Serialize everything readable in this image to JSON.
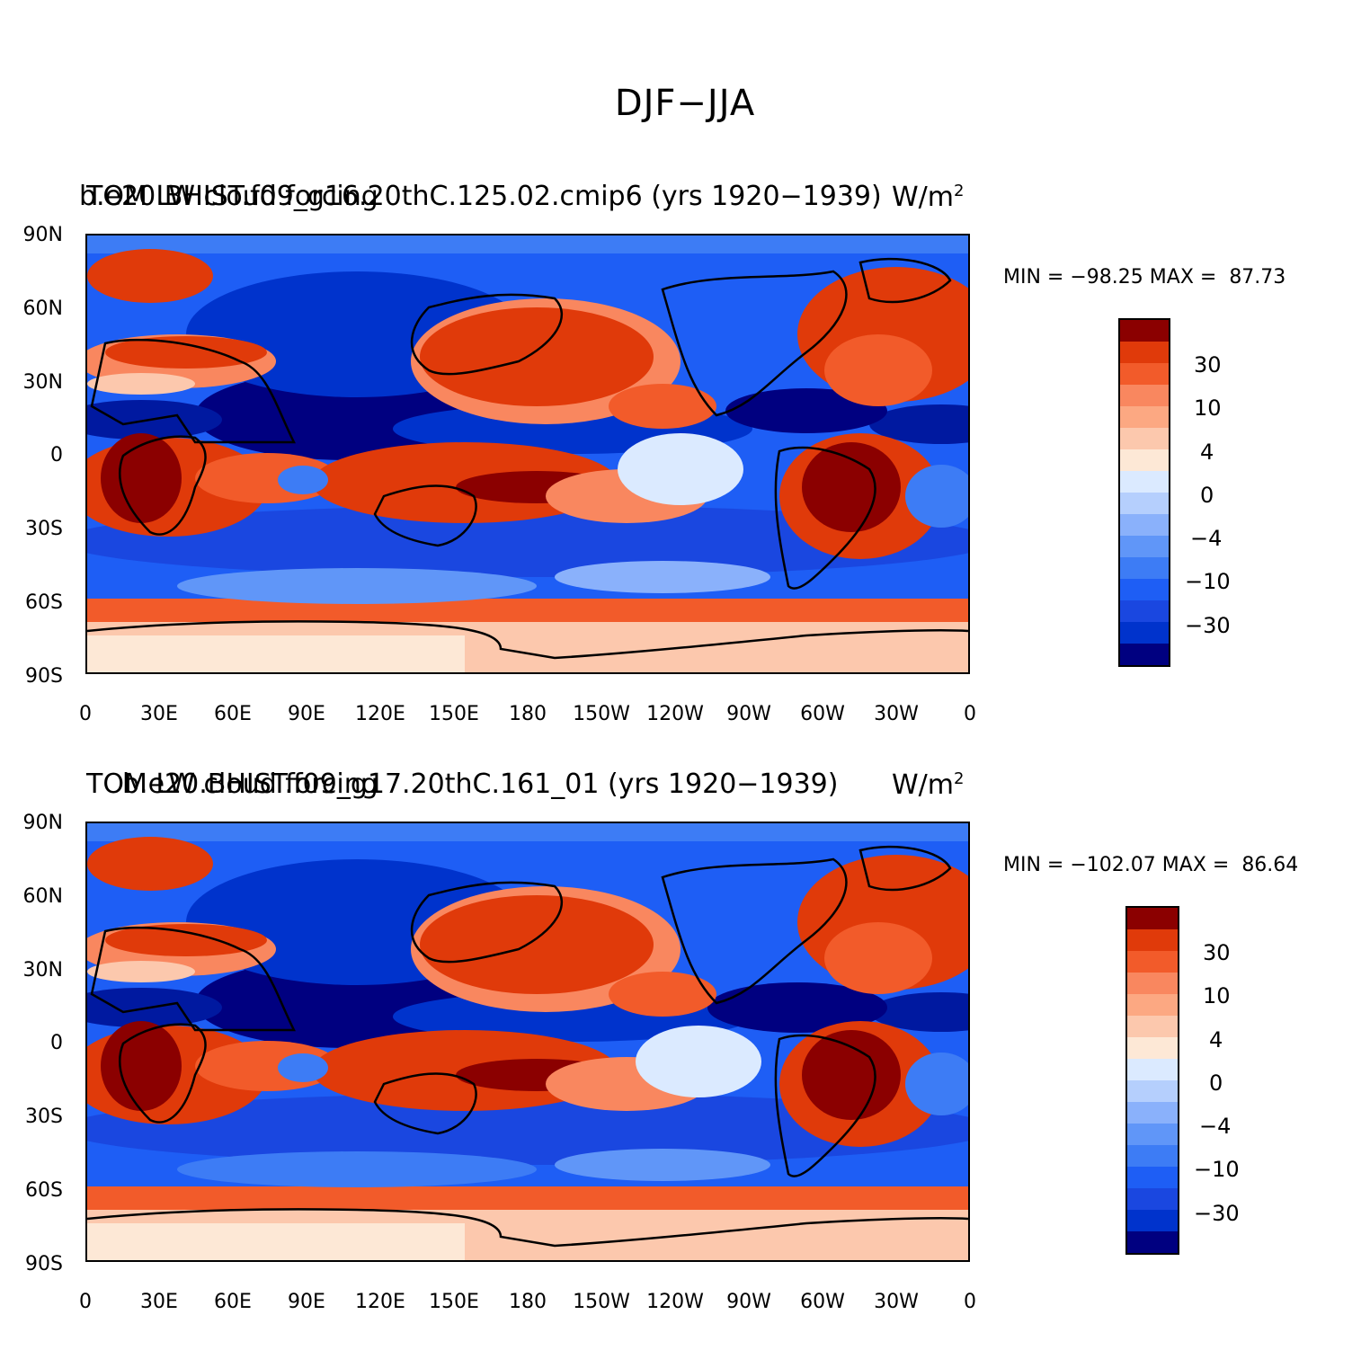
{
  "figure": {
    "title": "DJF−JJA",
    "colors": {
      "levels": [
        "#000080",
        "#0019a0",
        "#0033cc",
        "#1a47e0",
        "#1e5ef5",
        "#3d7cf5",
        "#6096f8",
        "#8ab1fb",
        "#b5cffd",
        "#dbeaff",
        "#fde8d6",
        "#fcc8ad",
        "#fca882",
        "#f9875f",
        "#f25b2a",
        "#e03a0a",
        "#c02808",
        "#8b0000"
      ]
    }
  },
  "panels": [
    {
      "case": "b.e20.BHIST.f09_g16.20thC.125.02.cmip6 (yrs 1920−1939)",
      "variable": "TOM LW cloud forcing",
      "units": "W/m",
      "units_exp": "2",
      "min_label": "MIN =",
      "min": "−98.25",
      "max_label": "MAX =",
      "max": "87.73",
      "colorbar_labels": [
        "30",
        "10",
        "4",
        "0",
        "−4",
        "−10",
        "−30"
      ]
    },
    {
      "case": "b.e20.BHIST.f09_g17.20thC.161_01 (yrs 1920−1939)",
      "variable": "TOM LW cloud forcing",
      "units": "W/m",
      "units_exp": "2",
      "min_label": "MIN =",
      "min": "−102.07",
      "max_label": "MAX =",
      "max": "86.64",
      "colorbar_labels": [
        "30",
        "10",
        "4",
        "0",
        "−4",
        "−10",
        "−30"
      ]
    }
  ],
  "axes": {
    "y_labels": [
      "90N",
      "60N",
      "30N",
      "0",
      "30S",
      "60S",
      "90S"
    ],
    "x_labels": [
      "0",
      "30E",
      "60E",
      "90E",
      "120E",
      "150E",
      "180",
      "150W",
      "120W",
      "90W",
      "60W",
      "30W",
      "0"
    ]
  }
}
